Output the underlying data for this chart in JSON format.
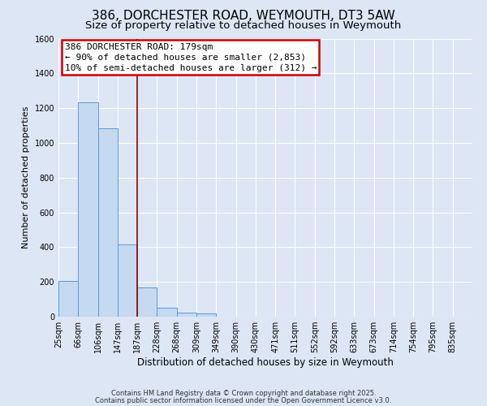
{
  "title": "386, DORCHESTER ROAD, WEYMOUTH, DT3 5AW",
  "subtitle": "Size of property relative to detached houses in Weymouth",
  "xlabel": "Distribution of detached houses by size in Weymouth",
  "ylabel": "Number of detached properties",
  "bin_labels": [
    "25sqm",
    "66sqm",
    "106sqm",
    "147sqm",
    "187sqm",
    "228sqm",
    "268sqm",
    "309sqm",
    "349sqm",
    "390sqm",
    "430sqm",
    "471sqm",
    "511sqm",
    "552sqm",
    "592sqm",
    "633sqm",
    "673sqm",
    "714sqm",
    "754sqm",
    "795sqm",
    "835sqm"
  ],
  "bar_values": [
    205,
    1235,
    1085,
    415,
    170,
    50,
    25,
    18,
    0,
    0,
    0,
    0,
    0,
    0,
    0,
    0,
    0,
    0,
    0,
    0,
    0
  ],
  "bar_color": "#c5d9f0",
  "bar_edge_color": "#5b9bd5",
  "vline_color": "#8b0000",
  "annotation_title": "386 DORCHESTER ROAD: 179sqm",
  "annotation_line1": "← 90% of detached houses are smaller (2,853)",
  "annotation_line2": "10% of semi-detached houses are larger (312) →",
  "annotation_box_color": "#ffffff",
  "annotation_box_edge": "#cc0000",
  "ylim_max": 1600,
  "yticks": [
    0,
    200,
    400,
    600,
    800,
    1000,
    1200,
    1400,
    1600
  ],
  "background_color": "#dce6f5",
  "grid_color": "#ffffff",
  "footer1": "Contains HM Land Registry data © Crown copyright and database right 2025.",
  "footer2": "Contains public sector information licensed under the Open Government Licence v3.0.",
  "title_fontsize": 11,
  "subtitle_fontsize": 9.5,
  "xlabel_fontsize": 8.5,
  "ylabel_fontsize": 8,
  "tick_fontsize": 7,
  "footer_fontsize": 6,
  "annot_fontsize": 8,
  "vline_bar_index": 4
}
